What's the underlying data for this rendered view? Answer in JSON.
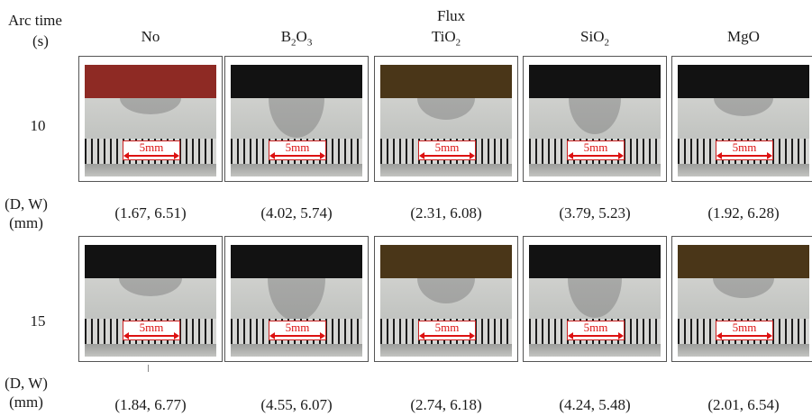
{
  "header": {
    "arc_time_label": "Arc time",
    "arc_time_unit": "(s)",
    "flux_label": "Flux",
    "columns": [
      {
        "name": "No"
      },
      {
        "name": "B2O3",
        "html_sub": true
      },
      {
        "name": "TiO2",
        "html_sub": true
      },
      {
        "name": "SiO2",
        "html_sub": true
      },
      {
        "name": "MgO"
      }
    ]
  },
  "rows": [
    {
      "time": "10",
      "dw_label_1": "(D, W)",
      "dw_label_2": "(mm)",
      "measurements": [
        "(1.67, 6.51)",
        "(4.02, 5.74)",
        "(2.31, 6.08)",
        "(3.79, 5.23)",
        "(1.92, 6.28)"
      ]
    },
    {
      "time": "15",
      "dw_label_1": "(D, W)",
      "dw_label_2": "(mm)",
      "measurements": [
        "(1.84, 6.77)",
        "(4.55, 6.07)",
        "(2.74, 6.18)",
        "(4.24, 5.48)",
        "(2.01, 6.54)"
      ]
    }
  ],
  "scale_bar_label": "5mm",
  "colors": {
    "scale_red": "#dd1111",
    "band_red": "#8e2a24",
    "band_black": "#121212",
    "band_brown": "#4a3618"
  }
}
